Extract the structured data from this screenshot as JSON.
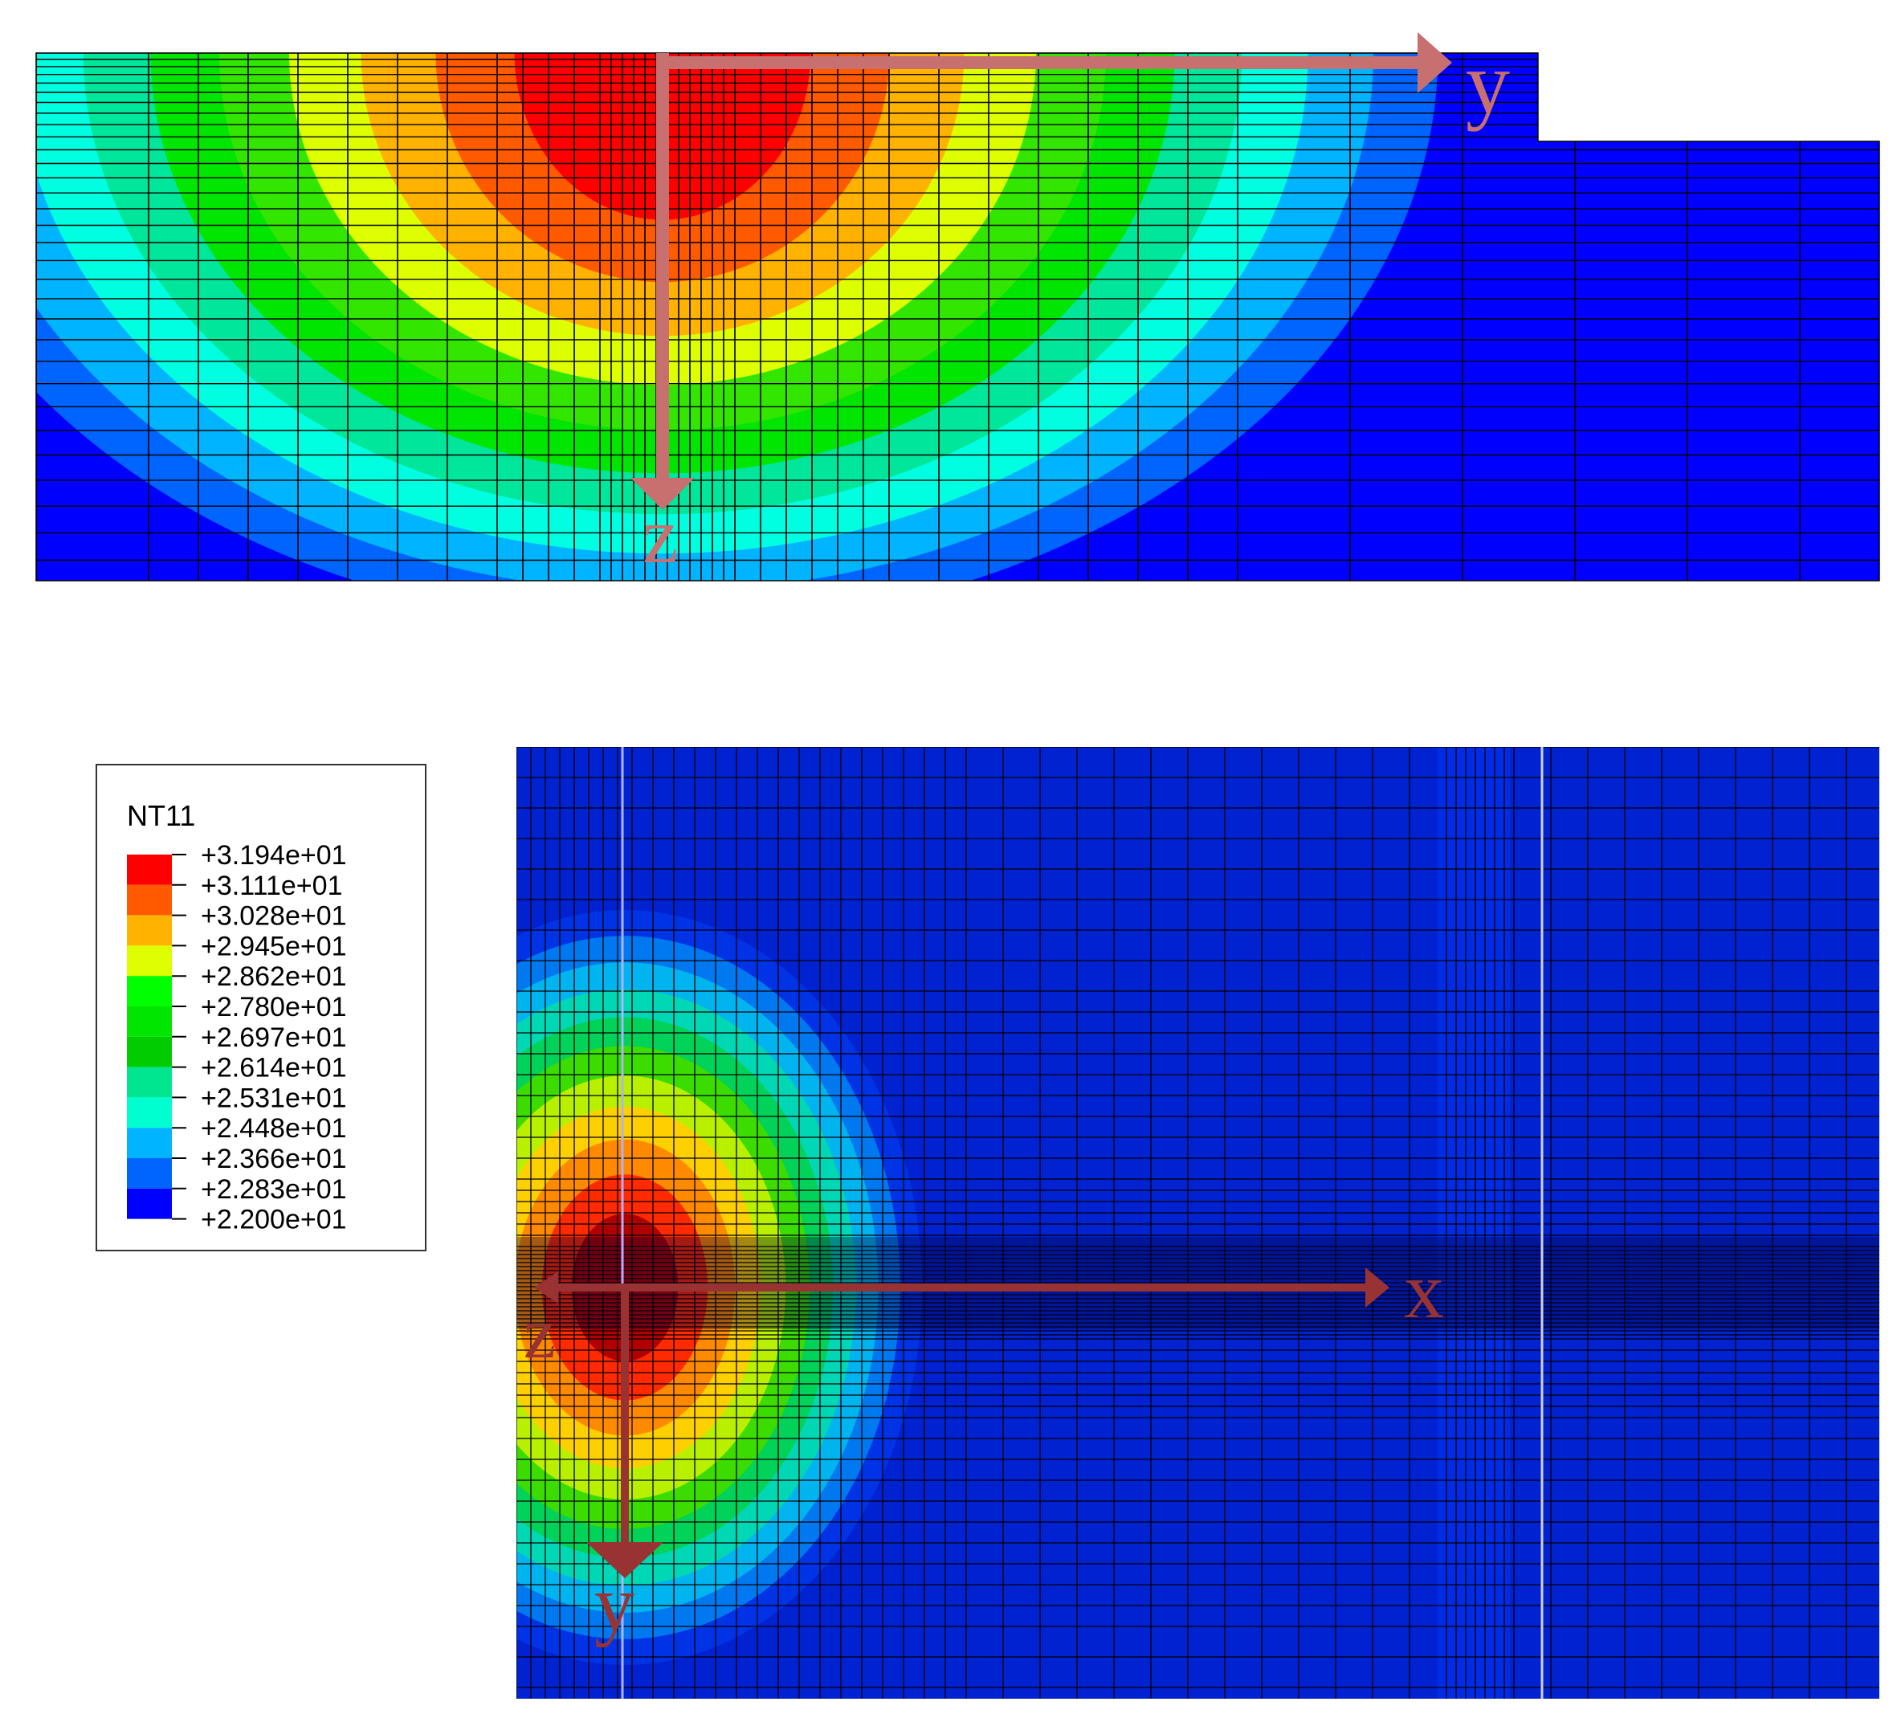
{
  "top_view": {
    "axis_labels": {
      "horizontal": "y",
      "vertical": "z"
    },
    "contour_levels_from_center": [
      "#ff0000",
      "#ff5a00",
      "#ffb300",
      "#ddff00",
      "#33e600",
      "#00e600",
      "#00e69a",
      "#00ffe0",
      "#00b4ff",
      "#0064ff",
      "#0000ff"
    ]
  },
  "bottom_view": {
    "axis_labels": {
      "horizontal": "x",
      "vertical": "y",
      "out_of_plane": "z"
    },
    "contour_levels_from_center": [
      "#b00000",
      "#ff2a00",
      "#ff8a00",
      "#ffd000",
      "#b8f000",
      "#3cdc00",
      "#00d25a",
      "#00d7b4",
      "#00b4f0",
      "#0078f0",
      "#0032e6"
    ]
  },
  "legend": {
    "title": "NT11",
    "entries": [
      {
        "label": "+3.194e+01",
        "color": "#ff0000"
      },
      {
        "label": "+3.111e+01",
        "color": "#ff5a00"
      },
      {
        "label": "+3.028e+01",
        "color": "#ffb300"
      },
      {
        "label": "+2.945e+01",
        "color": "#ddff00"
      },
      {
        "label": "+2.862e+01",
        "color": "#00ff00"
      },
      {
        "label": "+2.780e+01",
        "color": "#00e600"
      },
      {
        "label": "+2.697e+01",
        "color": "#00cc00"
      },
      {
        "label": "+2.614e+01",
        "color": "#00e690"
      },
      {
        "label": "+2.531e+01",
        "color": "#00ffd0"
      },
      {
        "label": "+2.448e+01",
        "color": "#00b4ff"
      },
      {
        "label": "+2.366e+01",
        "color": "#0064ff"
      },
      {
        "label": "+2.283e+01",
        "color": "#0000ff"
      },
      {
        "label": "+2.200e+01",
        "color": "#0000ff"
      }
    ]
  },
  "colors": {
    "background_field": "#0022d0",
    "mesh_line": "#000000",
    "top_axis_arrow": "#c87070",
    "bottom_axis_arrow": "#993333"
  }
}
